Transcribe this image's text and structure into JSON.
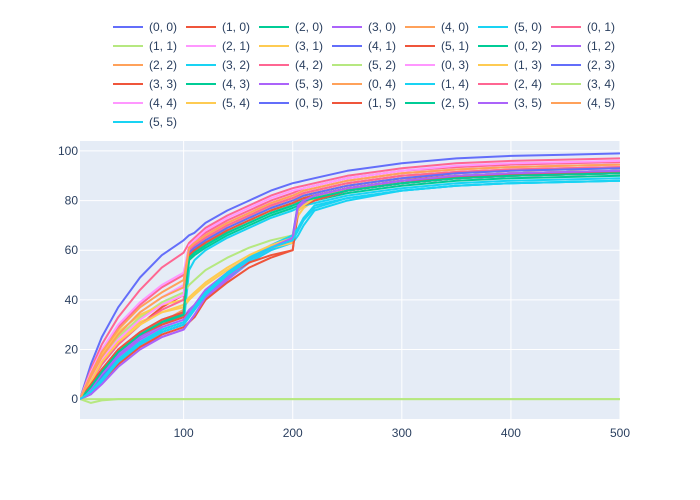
{
  "chart_data": {
    "type": "line",
    "title": "",
    "xlabel": "",
    "ylabel": "",
    "xlim": [
      5,
      500
    ],
    "ylim": [
      -8,
      104
    ],
    "x_ticks": [
      100,
      200,
      300,
      400,
      500
    ],
    "y_ticks": [
      0,
      20,
      40,
      60,
      80,
      100
    ],
    "grid": true,
    "legend_position": "top",
    "legend_columns": 7,
    "colors": {
      "plot_background": "#e5ecf6",
      "grid": "#ffffff",
      "text": "#2a3f5f"
    },
    "x": [
      5,
      15,
      25,
      40,
      60,
      80,
      100,
      105,
      110,
      120,
      140,
      160,
      180,
      200,
      205,
      210,
      220,
      250,
      300,
      350,
      400,
      450,
      500
    ],
    "series": [
      {
        "name": "(0, 0)",
        "color": "#636efa",
        "values": [
          0,
          14,
          25,
          37,
          49,
          58,
          64,
          66,
          67,
          71,
          76,
          80,
          84,
          87,
          87.5,
          88,
          89,
          92,
          95,
          97,
          98,
          98.5,
          99
        ]
      },
      {
        "name": "(1, 0)",
        "color": "#ef553b",
        "values": [
          0,
          7,
          14,
          22,
          30,
          37,
          42,
          60,
          62,
          65,
          70,
          74,
          78,
          81,
          81.5,
          82,
          83,
          86,
          89,
          90,
          91,
          91.5,
          92
        ]
      },
      {
        "name": "(2, 0)",
        "color": "#00cc96",
        "values": [
          0,
          5,
          11,
          18,
          25,
          30,
          34,
          56,
          58,
          61,
          66,
          70,
          74,
          77,
          78,
          79,
          80,
          83,
          86,
          88,
          89,
          89.5,
          90
        ]
      },
      {
        "name": "(3, 0)",
        "color": "#ab63fa",
        "values": [
          0,
          3,
          8,
          15,
          21,
          25,
          28,
          31,
          34,
          40,
          48,
          55,
          60,
          64,
          77,
          78,
          80,
          84,
          87,
          89,
          90,
          90.5,
          91
        ]
      },
      {
        "name": "(4, 0)",
        "color": "#ffa15a",
        "values": [
          0,
          6,
          12,
          19,
          26,
          31,
          36,
          58,
          60,
          64,
          69,
          73,
          77,
          80,
          80.5,
          81,
          82,
          85,
          88,
          89.5,
          90.5,
          91,
          91.5
        ]
      },
      {
        "name": "(5, 0)",
        "color": "#19d3f3",
        "values": [
          0,
          4,
          9,
          16,
          22,
          27,
          30,
          33,
          36,
          42,
          49,
          55,
          60,
          63,
          66,
          70,
          76,
          80,
          84,
          86,
          87,
          87.5,
          88
        ]
      },
      {
        "name": "(0, 1)",
        "color": "#ff6692",
        "values": [
          0,
          12,
          22,
          33,
          44,
          53,
          59,
          63,
          65,
          69,
          74,
          78,
          82,
          85,
          85.5,
          86,
          87,
          90,
          93,
          95,
          96,
          96.5,
          97
        ]
      },
      {
        "name": "(1, 1)",
        "color": "#b6e880",
        "values": [
          0,
          -1.5,
          -0.5,
          0,
          0,
          0,
          0,
          0,
          0,
          0,
          0,
          0,
          0,
          0,
          0,
          0,
          0,
          0,
          0,
          0,
          0,
          0,
          0
        ]
      },
      {
        "name": "(2, 1)",
        "color": "#ff97ff",
        "values": [
          0,
          9,
          17,
          26,
          35,
          41,
          46,
          61,
          63,
          66,
          71,
          75,
          79,
          82,
          82.5,
          83,
          84,
          87,
          90,
          91.5,
          92.5,
          93,
          93.5
        ]
      },
      {
        "name": "(3, 1)",
        "color": "#fecb52",
        "values": [
          0,
          8,
          16,
          24,
          31,
          35,
          37,
          40,
          42,
          46,
          52,
          57,
          61,
          63,
          74,
          77,
          80,
          84,
          88,
          90,
          91,
          91.5,
          92
        ]
      },
      {
        "name": "(4, 1)",
        "color": "#636efa",
        "values": [
          0,
          3,
          9,
          16,
          23,
          28,
          31,
          34,
          37,
          43,
          51,
          57,
          62,
          66,
          79,
          80,
          82,
          85,
          88,
          89.5,
          90.5,
          91,
          91.5
        ]
      },
      {
        "name": "(5, 1)",
        "color": "#ef553b",
        "values": [
          0,
          2,
          7,
          14,
          21,
          26,
          29,
          31,
          33,
          40,
          47,
          53,
          57,
          60,
          78,
          79,
          81,
          84,
          87,
          89,
          90,
          90.5,
          91
        ]
      },
      {
        "name": "(0, 2)",
        "color": "#00cc96",
        "values": [
          0,
          4,
          10,
          18,
          25,
          31,
          35,
          57,
          59,
          62,
          67,
          71,
          75,
          78,
          79,
          80,
          81,
          84,
          87,
          89,
          90,
          90.5,
          91
        ]
      },
      {
        "name": "(1, 2)",
        "color": "#ab63fa",
        "values": [
          0,
          5,
          11,
          18,
          25,
          30,
          33,
          36,
          38,
          44,
          51,
          57,
          61,
          64,
          76,
          78,
          80,
          84,
          87,
          89,
          90,
          90.5,
          91
        ]
      },
      {
        "name": "(2, 2)",
        "color": "#ffa15a",
        "values": [
          0,
          8,
          16,
          25,
          33,
          38,
          42,
          60,
          62,
          65,
          70,
          74,
          78,
          81,
          82,
          83,
          84,
          87,
          90,
          91.5,
          92.5,
          93,
          93.5
        ]
      },
      {
        "name": "(3, 2)",
        "color": "#19d3f3",
        "values": [
          0,
          2,
          7,
          15,
          22,
          27,
          30,
          52,
          56,
          60,
          65,
          69,
          73,
          76,
          77,
          78,
          79,
          82,
          85,
          87,
          88,
          88.5,
          89
        ]
      },
      {
        "name": "(4, 2)",
        "color": "#ff6692",
        "values": [
          0,
          10,
          19,
          29,
          38,
          45,
          50,
          62,
          64,
          67,
          72,
          76,
          80,
          83,
          84,
          85,
          86,
          89,
          92,
          93.5,
          94.5,
          95,
          95.5
        ]
      },
      {
        "name": "(5, 2)",
        "color": "#b6e880",
        "values": [
          0,
          9,
          17,
          25,
          33,
          39,
          43,
          46,
          48,
          52,
          57,
          61,
          64,
          66,
          76,
          78,
          81,
          85,
          88,
          90,
          91,
          91.5,
          92
        ]
      },
      {
        "name": "(0, 3)",
        "color": "#ff97ff",
        "values": [
          0,
          11,
          20,
          30,
          39,
          46,
          51,
          62,
          64,
          68,
          73,
          77,
          81,
          84,
          84.5,
          85,
          86,
          89,
          92,
          94,
          95,
          95.5,
          96
        ]
      },
      {
        "name": "(1, 3)",
        "color": "#fecb52",
        "values": [
          0,
          9,
          18,
          27,
          34,
          38,
          40,
          60,
          62,
          65,
          70,
          74,
          78,
          81,
          81.5,
          82,
          83,
          86,
          89,
          91,
          92,
          92.5,
          93
        ]
      },
      {
        "name": "(2, 3)",
        "color": "#636efa",
        "values": [
          0,
          3,
          8,
          15,
          22,
          27,
          30,
          33,
          36,
          42,
          50,
          56,
          61,
          65,
          79,
          80,
          82,
          85,
          88,
          90,
          91,
          91.5,
          92
        ]
      },
      {
        "name": "(3, 3)",
        "color": "#ef553b",
        "values": [
          0,
          6,
          12,
          19,
          26,
          30,
          33,
          35,
          37,
          43,
          50,
          55,
          58,
          60,
          76,
          78,
          80,
          84,
          87,
          89,
          90,
          90.5,
          91
        ]
      },
      {
        "name": "(4, 3)",
        "color": "#00cc96",
        "values": [
          0,
          5,
          11,
          19,
          26,
          31,
          35,
          58,
          60,
          63,
          68,
          72,
          76,
          79,
          80,
          81,
          82,
          85,
          88,
          90,
          91,
          91.5,
          92
        ]
      },
      {
        "name": "(5, 3)",
        "color": "#ab63fa",
        "values": [
          0,
          4,
          10,
          17,
          24,
          29,
          32,
          35,
          38,
          44,
          51,
          57,
          61,
          64,
          77,
          79,
          81,
          85,
          88,
          90,
          91,
          91.5,
          92
        ]
      },
      {
        "name": "(0, 4)",
        "color": "#ffa15a",
        "values": [
          0,
          10,
          19,
          28,
          37,
          43,
          48,
          61,
          63,
          66,
          71,
          75,
          79,
          82,
          83,
          84,
          85,
          88,
          91,
          92.5,
          93.5,
          94,
          94.5
        ]
      },
      {
        "name": "(1, 4)",
        "color": "#19d3f3",
        "values": [
          0,
          3,
          8,
          16,
          23,
          28,
          31,
          34,
          37,
          43,
          51,
          57,
          62,
          66,
          69,
          73,
          78,
          81,
          84,
          86,
          87,
          87.5,
          88
        ]
      },
      {
        "name": "(2, 4)",
        "color": "#ff6692",
        "values": [
          0,
          7,
          14,
          22,
          30,
          36,
          40,
          60,
          62,
          65,
          70,
          74,
          78,
          81,
          82,
          83,
          84,
          87,
          90,
          91.5,
          92.5,
          93,
          93.5
        ]
      },
      {
        "name": "(3, 4)",
        "color": "#b6e880",
        "values": [
          0,
          0,
          0,
          0,
          0,
          0,
          0,
          0,
          0,
          0,
          0,
          0,
          0,
          0,
          0,
          0,
          0,
          0,
          0,
          0,
          0,
          0,
          0
        ]
      },
      {
        "name": "(4, 4)",
        "color": "#ff97ff",
        "values": [
          0,
          8,
          16,
          24,
          32,
          38,
          42,
          61,
          63,
          66,
          71,
          75,
          79,
          82,
          83,
          84,
          85,
          88,
          91,
          92.5,
          93.5,
          94,
          94.5
        ]
      },
      {
        "name": "(5, 4)",
        "color": "#fecb52",
        "values": [
          0,
          7,
          15,
          23,
          30,
          35,
          38,
          41,
          43,
          47,
          53,
          58,
          62,
          65,
          76,
          78,
          81,
          85,
          88,
          90,
          91,
          91.5,
          92
        ]
      },
      {
        "name": "(0, 5)",
        "color": "#636efa",
        "values": [
          0,
          5,
          12,
          20,
          27,
          32,
          35,
          59,
          61,
          64,
          69,
          73,
          77,
          80,
          81,
          82,
          83,
          86,
          89,
          91,
          92,
          92.5,
          93
        ]
      },
      {
        "name": "(1, 5)",
        "color": "#ef553b",
        "values": [
          0,
          6,
          12,
          20,
          27,
          32,
          35,
          58,
          60,
          63,
          68,
          72,
          76,
          79,
          80,
          81,
          82,
          85,
          88,
          89.5,
          90.5,
          91,
          91.5
        ]
      },
      {
        "name": "(2, 5)",
        "color": "#00cc96",
        "values": [
          0,
          5,
          11,
          19,
          26,
          31,
          34,
          57,
          59,
          62,
          67,
          71,
          75,
          78,
          79,
          80,
          81,
          84,
          87,
          89,
          90,
          90.5,
          91
        ]
      },
      {
        "name": "(3, 5)",
        "color": "#ab63fa",
        "values": [
          0,
          2,
          6,
          13,
          20,
          25,
          28,
          31,
          34,
          41,
          49,
          56,
          61,
          65,
          78,
          80,
          82,
          85,
          88,
          90,
          91,
          91.5,
          92
        ]
      },
      {
        "name": "(4, 5)",
        "color": "#ffa15a",
        "values": [
          0,
          9,
          17,
          26,
          35,
          41,
          45,
          61,
          63,
          66,
          71,
          75,
          79,
          82,
          83,
          84,
          85,
          88,
          91,
          92.5,
          93.5,
          94,
          94.5
        ]
      },
      {
        "name": "(5, 5)",
        "color": "#19d3f3",
        "values": [
          0,
          3,
          8,
          15,
          22,
          27,
          30,
          33,
          36,
          42,
          50,
          56,
          61,
          64,
          68,
          72,
          77,
          81,
          84,
          86,
          87,
          87.5,
          88
        ]
      }
    ]
  }
}
